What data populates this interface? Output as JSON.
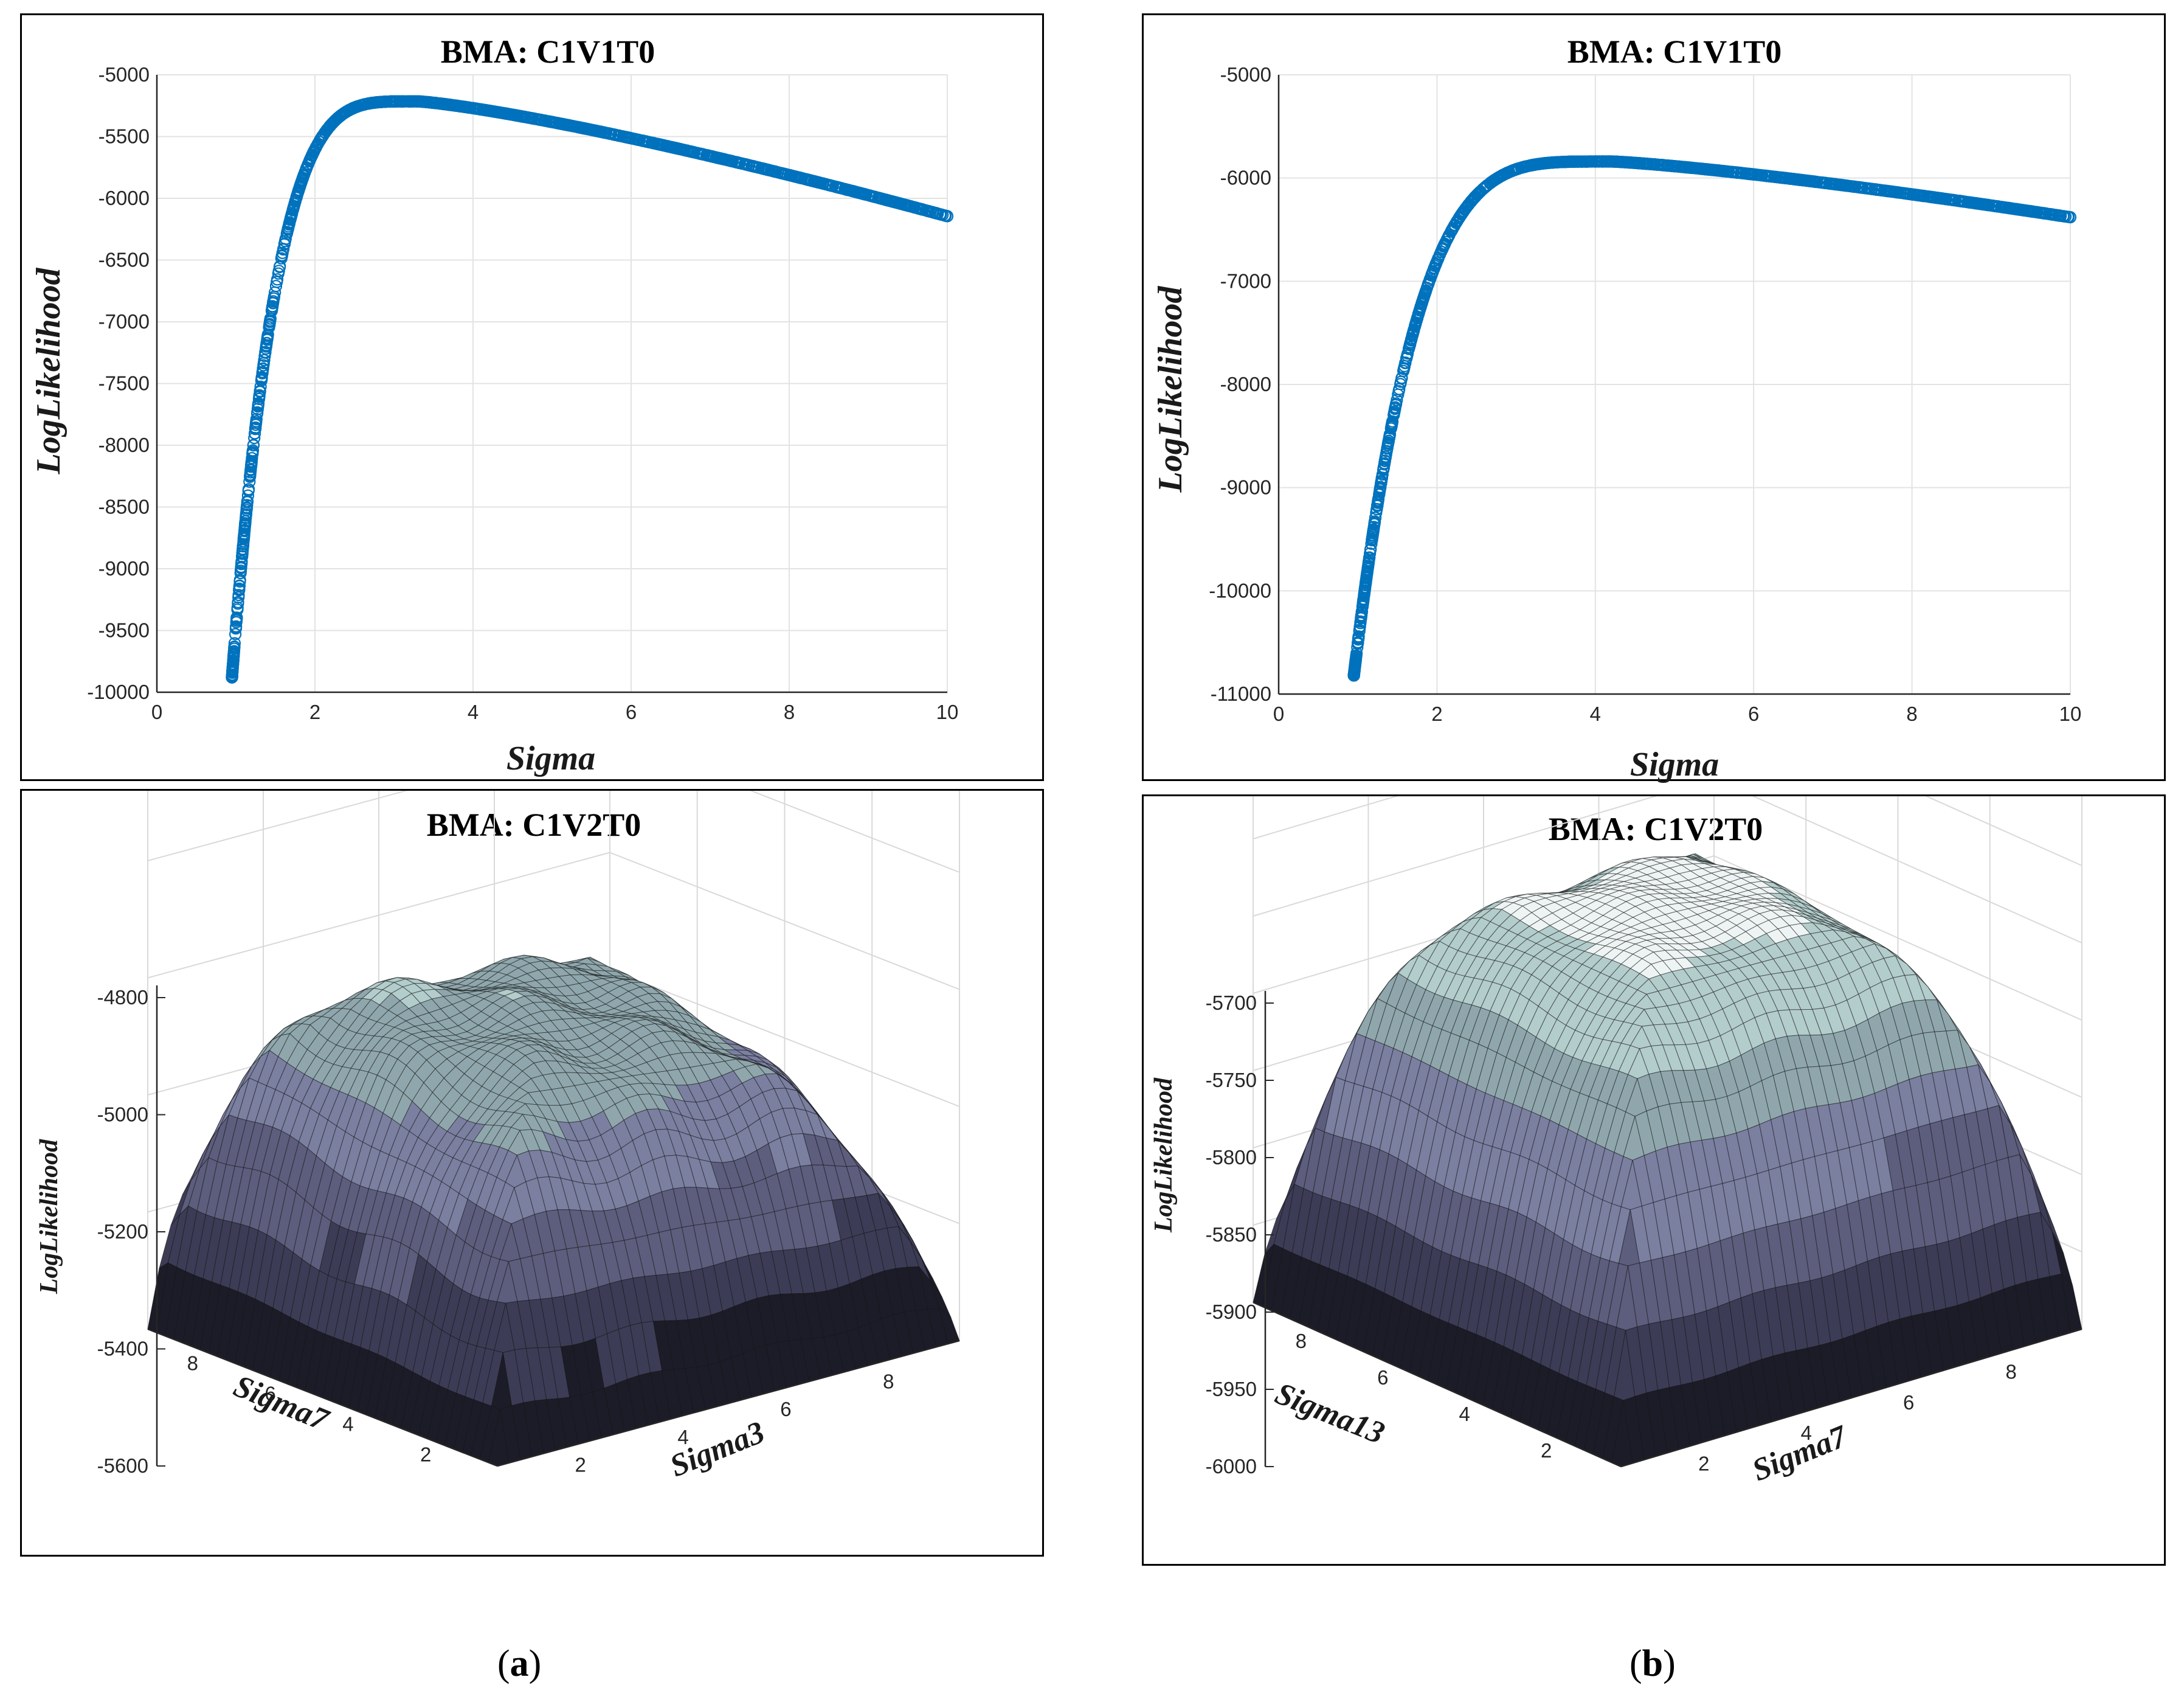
{
  "captions": {
    "a": "a",
    "b": "b"
  },
  "chart_data": [
    {
      "id": "a-top",
      "type": "scatter",
      "title": "BMA: C1V1T0",
      "xlabel": "Sigma",
      "ylabel": "LogLikelihood",
      "xlim": [
        0,
        10
      ],
      "ylim": [
        -10000,
        -5000
      ],
      "xticks": [
        0,
        2,
        4,
        6,
        8,
        10
      ],
      "yticks": [
        -5000,
        -5500,
        -6000,
        -6500,
        -7000,
        -7500,
        -8000,
        -8500,
        -9000,
        -9500,
        -10000
      ],
      "marker_color": "#0072BD",
      "curve": {
        "peak_sigma": 3.3,
        "peak_value": -5215,
        "value_at_10": -6145,
        "min_sigma": 0.95,
        "value_at_min": -9880
      }
    },
    {
      "id": "b-top",
      "type": "scatter",
      "title": "BMA: C1V1T0",
      "xlabel": "Sigma",
      "ylabel": "LogLikelihood",
      "xlim": [
        0,
        10
      ],
      "ylim": [
        -11000,
        -5000
      ],
      "xticks": [
        0,
        2,
        4,
        6,
        8,
        10
      ],
      "yticks": [
        -5000,
        -6000,
        -7000,
        -8000,
        -9000,
        -10000,
        -11000
      ],
      "marker_color": "#0072BD",
      "curve": {
        "peak_sigma": 4.2,
        "peak_value": -5840,
        "value_at_10": -6380,
        "min_sigma": 0.95,
        "value_at_min": -10820
      }
    },
    {
      "id": "a-bottom",
      "type": "surface",
      "title": "BMA: C1V2T0",
      "zlabel": "LogLikelihood",
      "xlabel": "Sigma3",
      "ylabel": "Sigma7",
      "zticks": [
        -4800,
        -5000,
        -5200,
        -5400,
        -5600
      ],
      "xticks": [
        2,
        4,
        6,
        8
      ],
      "yticks": [
        2,
        4,
        6,
        8
      ],
      "colormap": [
        "#1c1c28",
        "#3c3c56",
        "#5d5d7d",
        "#7b7fa0",
        "#8fa7ac",
        "#b3cccc",
        "#eef4f4"
      ]
    },
    {
      "id": "b-bottom",
      "type": "surface",
      "title": "BMA: C1V2T0",
      "zlabel": "LogLikelihood",
      "xlabel": "Sigma7",
      "ylabel": "Sigma13",
      "zticks": [
        -5700,
        -5750,
        -5800,
        -5850,
        -5900,
        -5950,
        -6000
      ],
      "xticks": [
        2,
        4,
        6,
        8
      ],
      "yticks": [
        2,
        4,
        6,
        8
      ],
      "colormap": [
        "#1c1c28",
        "#3c3c56",
        "#5d5d7d",
        "#7b7fa0",
        "#8fa7ac",
        "#b3cccc",
        "#eef4f4"
      ]
    }
  ]
}
